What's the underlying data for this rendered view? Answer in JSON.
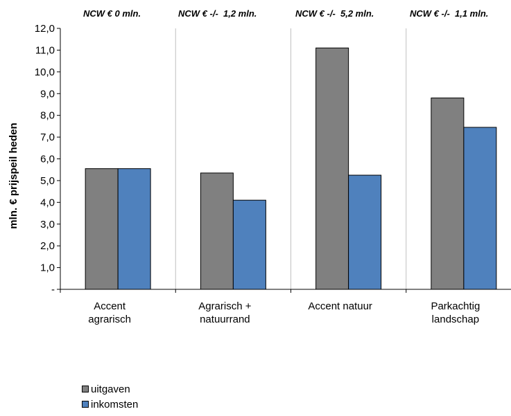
{
  "chart_data": {
    "type": "bar",
    "title": "",
    "xlabel": "",
    "ylabel": "mln. € prijspeil heden",
    "ylim": [
      0,
      12
    ],
    "y_ticks": [
      "-",
      "1,0",
      "2,0",
      "3,0",
      "4,0",
      "5,0",
      "6,0",
      "7,0",
      "8,0",
      "9,0",
      "10,0",
      "11,0",
      "12,0"
    ],
    "categories": [
      [
        "Accent",
        "agrarisch"
      ],
      [
        "Agrarisch +",
        "natuurrand"
      ],
      [
        "Accent natuur"
      ],
      [
        "Parkachtig",
        "landschap"
      ]
    ],
    "annotations": [
      "NCW € 0 mln.",
      "NCW € -/-  1,2 mln.",
      "NCW € -/-  5,2 mln.",
      "NCW € -/-  1,1 mln."
    ],
    "series": [
      {
        "name": "uitgaven",
        "color": "#808080",
        "values": [
          5.55,
          5.35,
          11.1,
          8.8
        ]
      },
      {
        "name": "inkomsten",
        "color": "#4f81bd",
        "values": [
          5.55,
          4.1,
          5.25,
          7.45
        ]
      }
    ],
    "grid": "vertical",
    "legend_position": "bottom-left"
  }
}
